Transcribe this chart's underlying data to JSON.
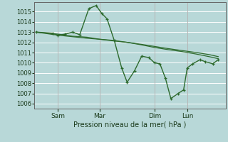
{
  "title": "",
  "xlabel": "Pression niveau de la mer( hPa )",
  "bg_color": "#b8d8d8",
  "grid_color": "#ffffff",
  "line_color": "#2d6a2d",
  "ylim": [
    1005.5,
    1015.9
  ],
  "yticks": [
    1006,
    1007,
    1008,
    1009,
    1010,
    1011,
    1012,
    1013,
    1014,
    1015
  ],
  "x_tick_labels": [
    "Sam",
    "Mar",
    "Dim",
    "Lun"
  ],
  "x_tick_positions": [
    0.12,
    0.35,
    0.65,
    0.83
  ],
  "series": [
    {
      "x": [
        0.0,
        0.12,
        0.2,
        0.28,
        0.35,
        0.42,
        0.5,
        0.58,
        0.65,
        0.72,
        0.8,
        0.88,
        0.95,
        1.0
      ],
      "y": [
        1013.0,
        1012.8,
        1012.6,
        1012.5,
        1012.3,
        1012.2,
        1012.0,
        1011.8,
        1011.6,
        1011.4,
        1011.2,
        1011.0,
        1010.8,
        1010.6
      ],
      "marker": false,
      "lw": 0.9
    },
    {
      "x": [
        0.0,
        0.12,
        0.2,
        0.28,
        0.35,
        0.42,
        0.5,
        0.58,
        0.65,
        0.72,
        0.8,
        0.88,
        0.95,
        1.0
      ],
      "y": [
        1013.0,
        1012.7,
        1012.55,
        1012.4,
        1012.3,
        1012.15,
        1012.0,
        1011.75,
        1011.5,
        1011.3,
        1011.1,
        1010.85,
        1010.6,
        1010.4
      ],
      "marker": false,
      "lw": 0.9
    },
    {
      "x": [
        0.0,
        0.09,
        0.12,
        0.16,
        0.2,
        0.24,
        0.29,
        0.33,
        0.36,
        0.39,
        0.43,
        0.47,
        0.5,
        0.54,
        0.58,
        0.62,
        0.65,
        0.68,
        0.71,
        0.74,
        0.78,
        0.81,
        0.83,
        0.86,
        0.9,
        0.93,
        0.97,
        1.0
      ],
      "y": [
        1013.0,
        1012.9,
        1012.7,
        1012.8,
        1013.0,
        1012.75,
        1015.3,
        1015.6,
        1014.85,
        1014.3,
        1012.15,
        1009.5,
        1008.1,
        1009.2,
        1010.65,
        1010.5,
        1010.0,
        1009.9,
        1008.5,
        1006.5,
        1007.0,
        1007.35,
        1009.5,
        1009.9,
        1010.3,
        1010.1,
        1009.9,
        1010.3
      ],
      "marker": true,
      "lw": 1.0
    }
  ]
}
